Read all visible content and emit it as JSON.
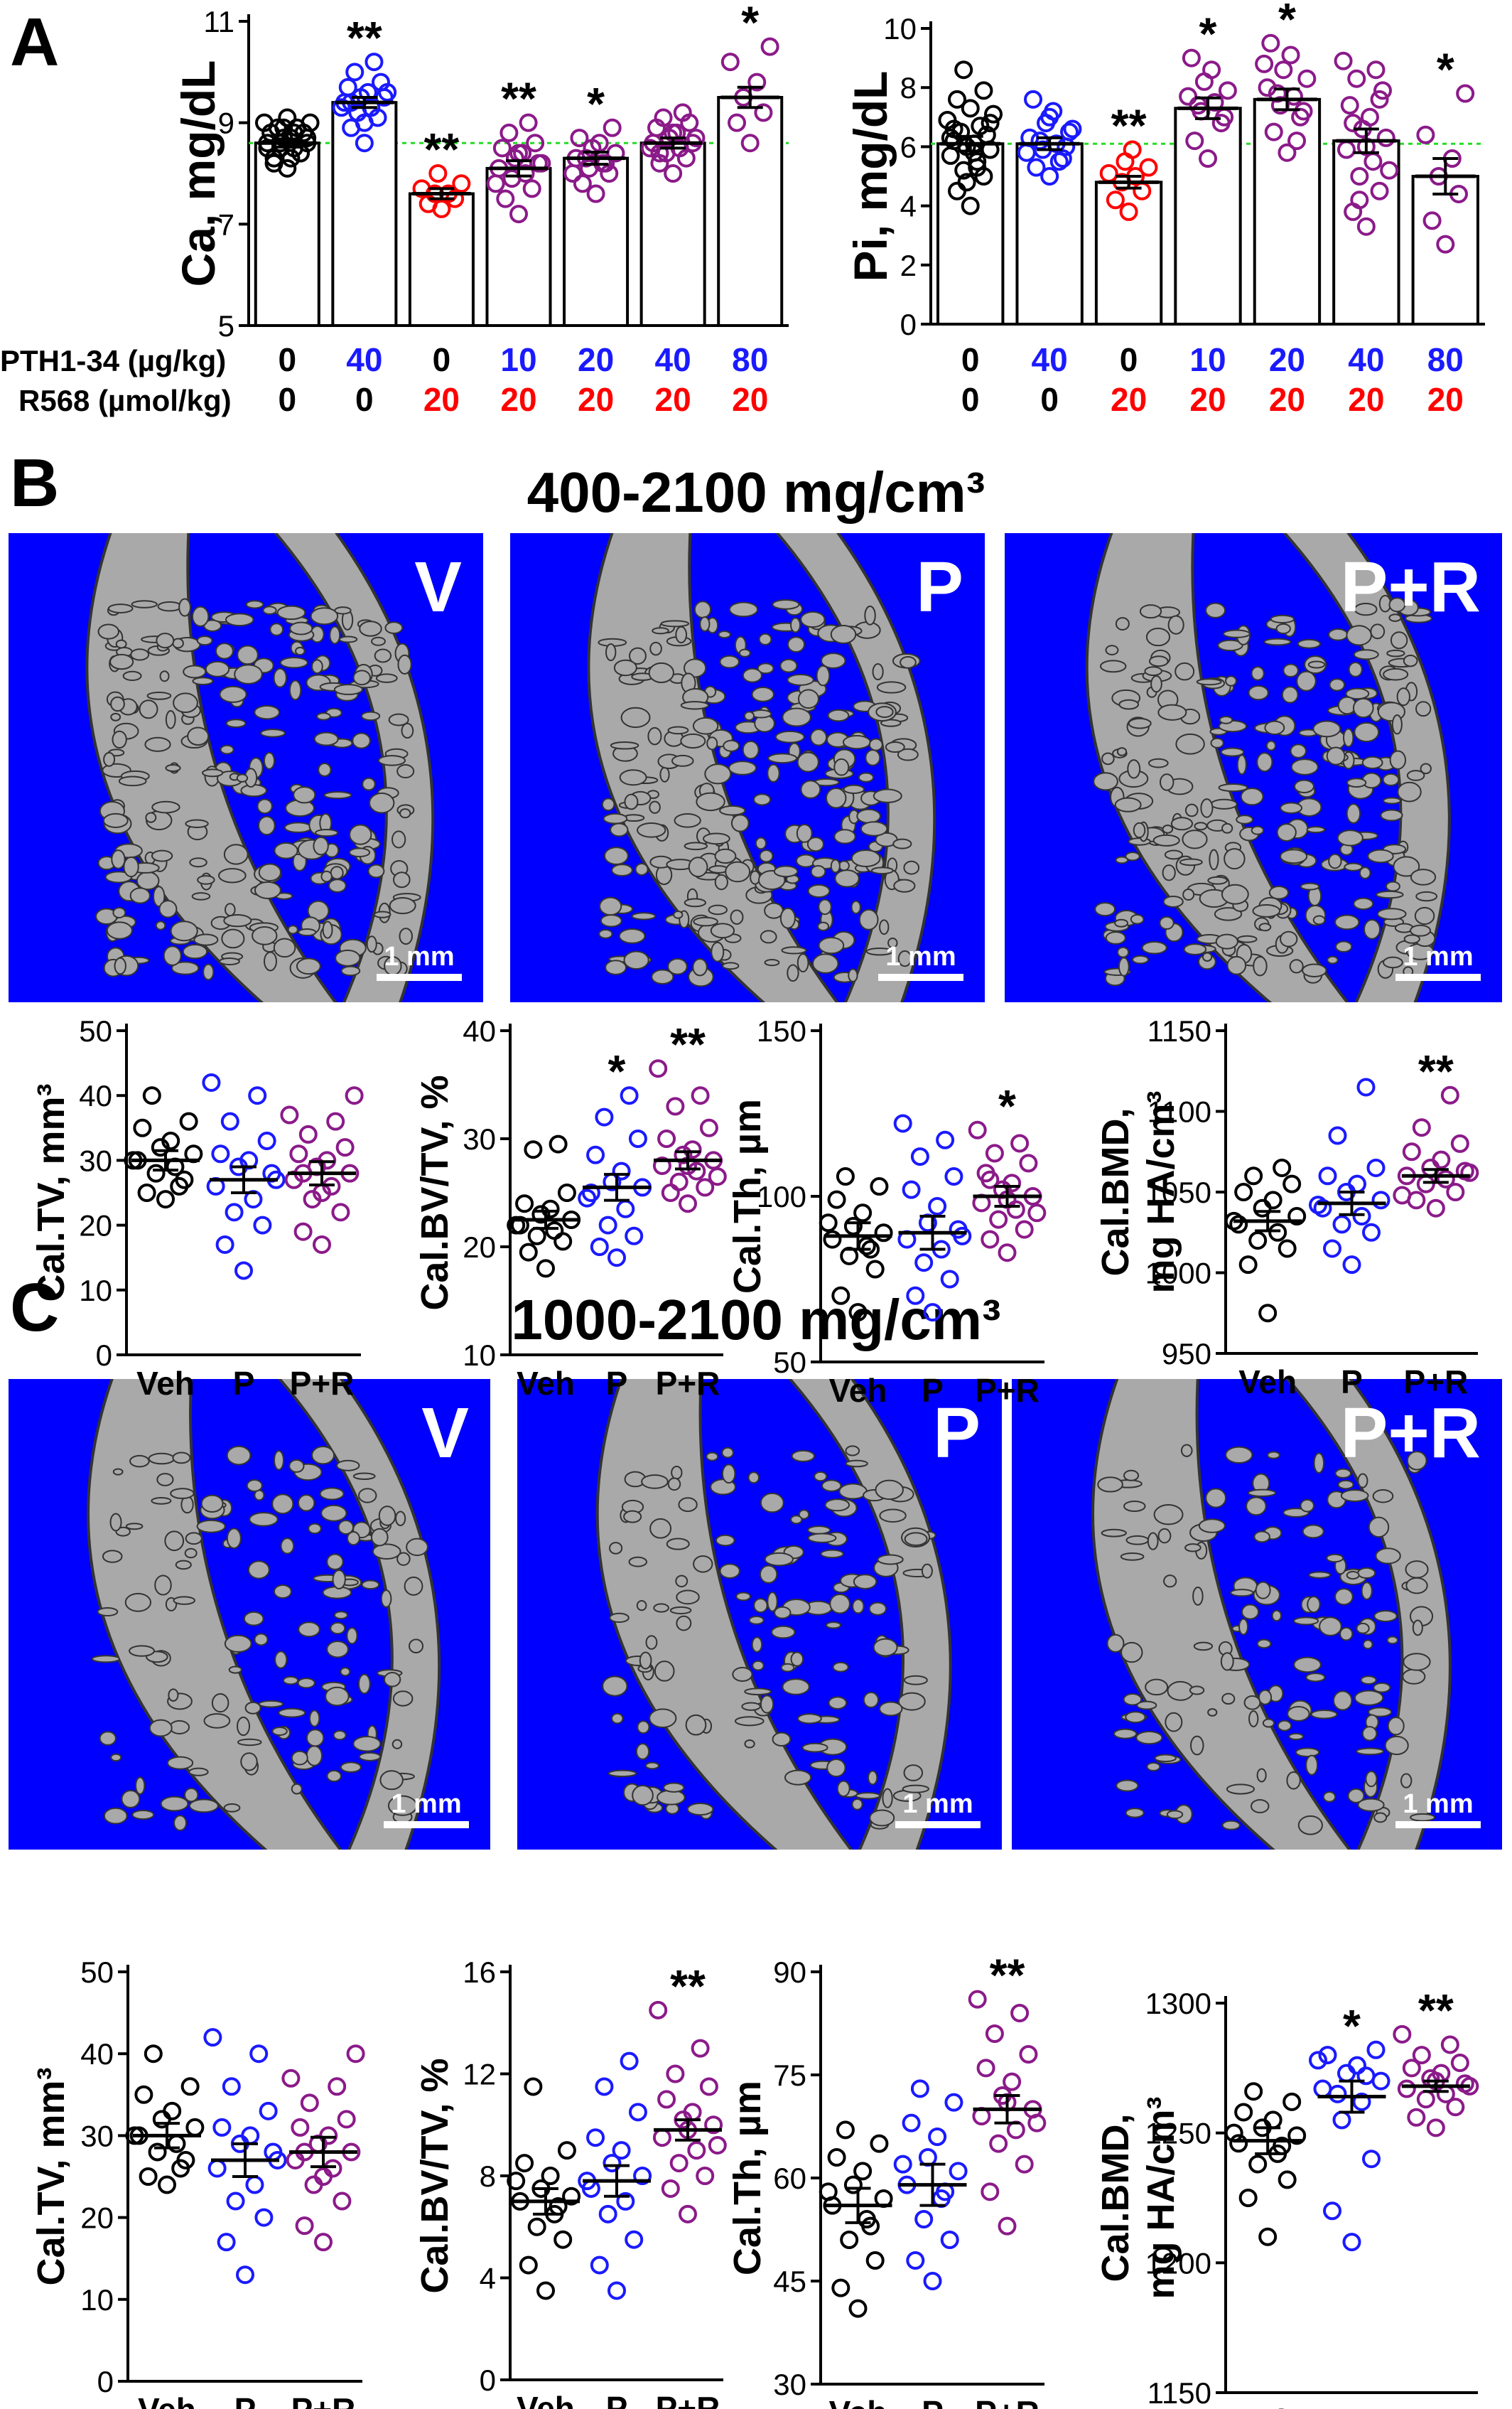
{
  "figure": {
    "panel_labels": [
      "A",
      "B",
      "C"
    ],
    "colors": {
      "vehicle": "#000000",
      "pth": "#1a1aff",
      "r568": "#ff0000",
      "pth_r568": "#8b1a89",
      "reference_line": "#22dd22",
      "image_background": "#0000ff",
      "bone": "#a9a9a9",
      "image_label": "#ffffff"
    },
    "panel_a": {
      "dose_rows": [
        {
          "label": "PTH1-34 (µg/kg)",
          "values": [
            "0",
            "40",
            "0",
            "10",
            "20",
            "40",
            "80"
          ],
          "colors": [
            "vehicle",
            "pth",
            "vehicle",
            "pth",
            "pth",
            "pth",
            "pth"
          ]
        },
        {
          "label": "R568 (µmol/kg)",
          "values": [
            "0",
            "0",
            "20",
            "20",
            "20",
            "20",
            "20"
          ],
          "colors": [
            "vehicle",
            "vehicle",
            "r568",
            "r568",
            "r568",
            "r568",
            "r568"
          ]
        }
      ]
    },
    "panel_b": {
      "title": "400-2100 mg/cm³",
      "images": [
        {
          "label": "V",
          "scale_bar": "1 mm"
        },
        {
          "label": "P",
          "scale_bar": "1 mm"
        },
        {
          "label": "P+R",
          "scale_bar": "1 mm"
        }
      ]
    },
    "panel_c": {
      "title": "1000-2100 mg/cm³",
      "images": [
        {
          "label": "V",
          "scale_bar": "1 mm"
        },
        {
          "label": "P",
          "scale_bar": "1 mm"
        },
        {
          "label": "P+R",
          "scale_bar": "1 mm"
        }
      ]
    }
  },
  "chart_data": [
    {
      "id": "A-Ca",
      "panel": "A",
      "type": "bar",
      "ylabel": "Ca, mg/dL",
      "ylim": [
        5,
        11
      ],
      "yticks": [
        5,
        7,
        9,
        11
      ],
      "reference_line": 8.6,
      "categories": [
        "PTH 0 / R568 0",
        "PTH 40 / R568 0",
        "PTH 0 / R568 20",
        "PTH 10 / R568 20",
        "PTH 20 / R568 20",
        "PTH 40 / R568 20",
        "PTH 80 / R568 20"
      ],
      "group_colors": [
        "vehicle",
        "pth",
        "r568",
        "pth_r568",
        "pth_r568",
        "pth_r568",
        "pth_r568"
      ],
      "means": [
        8.6,
        9.4,
        7.6,
        8.1,
        8.3,
        8.6,
        9.5
      ],
      "sem": [
        0.08,
        0.1,
        0.1,
        0.15,
        0.12,
        0.1,
        0.2
      ],
      "significance": [
        "",
        "**",
        "**",
        "**",
        "*",
        "",
        "*"
      ],
      "points": [
        [
          8.1,
          8.3,
          8.4,
          8.5,
          8.5,
          8.6,
          8.6,
          8.7,
          8.7,
          8.8,
          8.8,
          8.9,
          8.9,
          9.0,
          9.0,
          9.1,
          8.2,
          8.4,
          8.6,
          8.8,
          8.5,
          8.7,
          8.9,
          8.3
        ],
        [
          8.6,
          8.9,
          9.1,
          9.2,
          9.3,
          9.4,
          9.5,
          9.5,
          9.6,
          9.7,
          9.8,
          10.0,
          10.2,
          9.3,
          9.6,
          9.0,
          9.4
        ],
        [
          7.3,
          7.4,
          7.5,
          7.6,
          7.6,
          7.7,
          7.8,
          8.0
        ],
        [
          7.2,
          7.5,
          7.7,
          7.9,
          8.0,
          8.1,
          8.2,
          8.3,
          8.4,
          8.5,
          8.6,
          8.8,
          9.0,
          7.8,
          8.2,
          8.4
        ],
        [
          7.6,
          7.8,
          8.0,
          8.1,
          8.2,
          8.3,
          8.4,
          8.5,
          8.6,
          8.7,
          8.9,
          8.3,
          8.2,
          8.0
        ],
        [
          8.0,
          8.2,
          8.3,
          8.4,
          8.5,
          8.6,
          8.6,
          8.7,
          8.8,
          8.9,
          9.0,
          9.1,
          9.2,
          8.5,
          8.7,
          8.8,
          8.4
        ],
        [
          8.6,
          9.0,
          9.2,
          9.5,
          9.8,
          10.2,
          10.5
        ]
      ]
    },
    {
      "id": "A-Pi",
      "panel": "A",
      "type": "bar",
      "ylabel": "Pi, mg/dL",
      "ylim": [
        0,
        10
      ],
      "yticks": [
        0,
        2,
        4,
        6,
        8,
        10
      ],
      "reference_line": 6.1,
      "categories": [
        "PTH 0 / R568 0",
        "PTH 40 / R568 0",
        "PTH 0 / R568 20",
        "PTH 10 / R568 20",
        "PTH 20 / R568 20",
        "PTH 40 / R568 20",
        "PTH 80 / R568 20"
      ],
      "group_colors": [
        "vehicle",
        "pth",
        "r568",
        "pth_r568",
        "pth_r568",
        "pth_r568",
        "pth_r568"
      ],
      "means": [
        6.1,
        6.1,
        4.8,
        7.3,
        7.6,
        6.2,
        5.0
      ],
      "sem": [
        0.25,
        0.2,
        0.2,
        0.35,
        0.35,
        0.4,
        0.6
      ],
      "significance": [
        "",
        "",
        "**",
        "*",
        "*",
        "",
        "*"
      ],
      "points": [
        [
          4.0,
          4.5,
          5.0,
          5.2,
          5.5,
          5.7,
          5.9,
          6.0,
          6.1,
          6.2,
          6.4,
          6.5,
          6.7,
          6.9,
          7.1,
          7.3,
          7.6,
          7.9,
          8.6,
          5.3,
          6.3,
          6.8,
          4.8,
          5.8,
          6.6
        ],
        [
          5.0,
          5.3,
          5.6,
          5.9,
          6.1,
          6.3,
          6.5,
          6.8,
          7.2,
          7.6,
          6.0,
          6.2,
          5.5,
          5.8,
          6.6,
          7.0
        ],
        [
          3.8,
          4.2,
          4.5,
          4.8,
          5.0,
          5.1,
          5.3,
          5.5,
          5.9
        ],
        [
          5.6,
          6.2,
          6.8,
          7.2,
          7.5,
          7.7,
          7.9,
          8.2,
          8.6,
          9.0,
          7.0,
          7.4
        ],
        [
          5.8,
          6.5,
          7.0,
          7.4,
          7.7,
          8.0,
          8.3,
          8.6,
          9.1,
          9.5,
          7.2,
          7.8,
          6.2,
          8.8
        ],
        [
          3.3,
          3.8,
          4.5,
          5.0,
          5.5,
          5.9,
          6.3,
          6.6,
          7.0,
          7.4,
          7.9,
          8.3,
          8.6,
          8.9,
          5.2,
          6.0,
          6.8,
          7.6,
          4.2
        ],
        [
          2.7,
          3.5,
          4.4,
          5.0,
          5.6,
          6.4,
          7.8
        ]
      ]
    },
    {
      "id": "B-TV",
      "panel": "B",
      "type": "scatter",
      "ylabel": "Cal.TV, mm³",
      "ylim": [
        0,
        50
      ],
      "yticks": [
        0,
        10,
        20,
        30,
        40,
        50
      ],
      "categories": [
        "Veh",
        "P",
        "P+R"
      ],
      "group_colors": [
        "vehicle",
        "pth",
        "pth_r568"
      ],
      "means": [
        30,
        27,
        28
      ],
      "sem": [
        1.5,
        2.0,
        1.8
      ],
      "significance": [
        "",
        "",
        ""
      ],
      "points": [
        [
          24,
          25,
          27,
          28,
          29,
          30,
          31,
          32,
          33,
          35,
          36,
          40,
          26,
          30
        ],
        [
          13,
          17,
          20,
          22,
          24,
          26,
          28,
          29,
          30,
          31,
          33,
          36,
          40,
          42,
          27
        ],
        [
          17,
          19,
          22,
          24,
          26,
          27,
          28,
          29,
          30,
          31,
          32,
          34,
          36,
          37,
          40,
          25,
          28
        ]
      ]
    },
    {
      "id": "B-BVTV",
      "panel": "B",
      "type": "scatter",
      "ylabel": "Cal.BV/TV, %",
      "ylim": [
        10,
        40
      ],
      "yticks": [
        10,
        20,
        30,
        40
      ],
      "categories": [
        "Veh",
        "P",
        "P+R"
      ],
      "group_colors": [
        "vehicle",
        "pth",
        "pth_r568"
      ],
      "means": [
        22.5,
        25.5,
        28
      ],
      "sem": [
        0.8,
        1.2,
        0.8
      ],
      "significance": [
        "",
        "*",
        "**"
      ],
      "points": [
        [
          18,
          19.5,
          20.5,
          21,
          21.5,
          22,
          22.5,
          23,
          23.5,
          24,
          25,
          29,
          29.5,
          22
        ],
        [
          19,
          20,
          21,
          22,
          23.5,
          25,
          25.5,
          26,
          27,
          28.5,
          30,
          32,
          34,
          24.5
        ],
        [
          24,
          25,
          25.5,
          26,
          27,
          27.5,
          28,
          28.5,
          29,
          30,
          31,
          33,
          34,
          36.5,
          26.5,
          27.5
        ]
      ]
    },
    {
      "id": "B-Th",
      "panel": "B",
      "type": "scatter",
      "ylabel": "Cal.Th, µm",
      "ylim": [
        50,
        150
      ],
      "yticks": [
        50,
        100,
        150
      ],
      "categories": [
        "Veh",
        "P",
        "P+R"
      ],
      "group_colors": [
        "vehicle",
        "pth",
        "pth_r568"
      ],
      "means": [
        88,
        89,
        100
      ],
      "sem": [
        4,
        5,
        3
      ],
      "significance": [
        "",
        "",
        "*"
      ],
      "points": [
        [
          65,
          70,
          78,
          82,
          85,
          87,
          89,
          91,
          95,
          99,
          103,
          106,
          84,
          92
        ],
        [
          65,
          70,
          75,
          80,
          84,
          87,
          90,
          92,
          97,
          102,
          106,
          112,
          117,
          122,
          88
        ],
        [
          83,
          87,
          90,
          93,
          96,
          98,
          100,
          102,
          104,
          107,
          110,
          113,
          116,
          120,
          95,
          99,
          105
        ]
      ]
    },
    {
      "id": "B-BMD",
      "panel": "B",
      "type": "scatter",
      "ylabel": "Cal.BMD, mg HA/cm³",
      "ylim": [
        950,
        1150
      ],
      "yticks": [
        950,
        1000,
        1050,
        1100,
        1150
      ],
      "categories": [
        "Veh",
        "P",
        "P+R"
      ],
      "group_colors": [
        "vehicle",
        "pth",
        "pth_r568"
      ],
      "means": [
        1032,
        1043,
        1060
      ],
      "sem": [
        6,
        7,
        4
      ],
      "significance": [
        "",
        "",
        "**"
      ],
      "points": [
        [
          975,
          1005,
          1015,
          1020,
          1025,
          1030,
          1035,
          1040,
          1045,
          1050,
          1055,
          1060,
          1065,
          1032
        ],
        [
          1005,
          1015,
          1025,
          1030,
          1035,
          1040,
          1045,
          1050,
          1055,
          1060,
          1065,
          1085,
          1115,
          1042
        ],
        [
          1040,
          1045,
          1050,
          1055,
          1058,
          1060,
          1063,
          1065,
          1070,
          1075,
          1080,
          1090,
          1110,
          1048,
          1062
        ]
      ]
    },
    {
      "id": "C-TV",
      "panel": "C",
      "type": "scatter",
      "ylabel": "Cal.TV, mm³",
      "ylim": [
        0,
        50
      ],
      "yticks": [
        0,
        10,
        20,
        30,
        40,
        50
      ],
      "categories": [
        "Veh",
        "P",
        "P+R"
      ],
      "group_colors": [
        "vehicle",
        "pth",
        "pth_r568"
      ],
      "means": [
        30,
        27,
        28
      ],
      "sem": [
        1.5,
        2.0,
        1.8
      ],
      "significance": [
        "",
        "",
        ""
      ],
      "points": [
        [
          24,
          25,
          27,
          28,
          29,
          30,
          31,
          32,
          33,
          35,
          36,
          40,
          26,
          30
        ],
        [
          13,
          17,
          20,
          22,
          24,
          26,
          28,
          29,
          30,
          31,
          33,
          36,
          40,
          42,
          27
        ],
        [
          17,
          19,
          22,
          24,
          26,
          27,
          28,
          29,
          30,
          31,
          32,
          34,
          36,
          37,
          40,
          25,
          28
        ]
      ]
    },
    {
      "id": "C-BVTV",
      "panel": "C",
      "type": "scatter",
      "ylabel": "Cal.BV/TV, %",
      "ylim": [
        0,
        16
      ],
      "yticks": [
        0,
        4,
        8,
        12,
        16
      ],
      "categories": [
        "Veh",
        "P",
        "P+R"
      ],
      "group_colors": [
        "vehicle",
        "pth",
        "pth_r568"
      ],
      "means": [
        7,
        7.8,
        9.8
      ],
      "sem": [
        0.5,
        0.6,
        0.4
      ],
      "significance": [
        "",
        "",
        "**"
      ],
      "points": [
        [
          3.5,
          4.5,
          5.5,
          6,
          6.5,
          7,
          7.2,
          7.5,
          8,
          8.5,
          9,
          11.5,
          6.8,
          7.8
        ],
        [
          3.5,
          4.5,
          5.5,
          6.5,
          7,
          7.5,
          8,
          8.5,
          9,
          9.5,
          10.5,
          11.5,
          12.5,
          7.8
        ],
        [
          6.5,
          7.5,
          8,
          8.5,
          9,
          9.5,
          10,
          10.2,
          10.5,
          11,
          11.5,
          12,
          13,
          14.5,
          9.2,
          9.8
        ]
      ]
    },
    {
      "id": "C-Th",
      "panel": "C",
      "type": "scatter",
      "ylabel": "Cal.Th, µm",
      "ylim": [
        30,
        90
      ],
      "yticks": [
        30,
        45,
        60,
        75,
        90
      ],
      "categories": [
        "Veh",
        "P",
        "P+R"
      ],
      "group_colors": [
        "vehicle",
        "pth",
        "pth_r568"
      ],
      "means": [
        56,
        59,
        70
      ],
      "sem": [
        2.5,
        3,
        2
      ],
      "significance": [
        "",
        "",
        "**"
      ],
      "points": [
        [
          41,
          44,
          48,
          51,
          54,
          56,
          57,
          59,
          61,
          63,
          65,
          67,
          53,
          58
        ],
        [
          45,
          48,
          51,
          54,
          57,
          59,
          61,
          63,
          66,
          68,
          71,
          73,
          58,
          62
        ],
        [
          53,
          58,
          62,
          65,
          67,
          69,
          70,
          72,
          74,
          76,
          78,
          81,
          84,
          86,
          68,
          71
        ]
      ]
    },
    {
      "id": "C-BMD",
      "panel": "C",
      "type": "scatter",
      "ylabel": "Cal.BMD, mg HA/cm³",
      "ylim": [
        1150,
        1300
      ],
      "yticks": [
        1150,
        1200,
        1250,
        1300
      ],
      "categories": [
        "Veh",
        "P",
        "P+R"
      ],
      "group_colors": [
        "vehicle",
        "pth",
        "pth_r568"
      ],
      "means": [
        1247,
        1264,
        1268
      ],
      "sem": [
        5,
        6,
        2
      ],
      "significance": [
        "",
        "*",
        "**"
      ],
      "points": [
        [
          1210,
          1225,
          1232,
          1238,
          1242,
          1246,
          1249,
          1252,
          1255,
          1258,
          1262,
          1266,
          1245,
          1250
        ],
        [
          1208,
          1220,
          1240,
          1255,
          1262,
          1267,
          1270,
          1273,
          1276,
          1280,
          1282,
          1265,
          1272,
          1278
        ],
        [
          1252,
          1256,
          1260,
          1263,
          1265,
          1267,
          1269,
          1271,
          1273,
          1275,
          1277,
          1280,
          1284,
          1288,
          1268,
          1270
        ]
      ]
    }
  ]
}
